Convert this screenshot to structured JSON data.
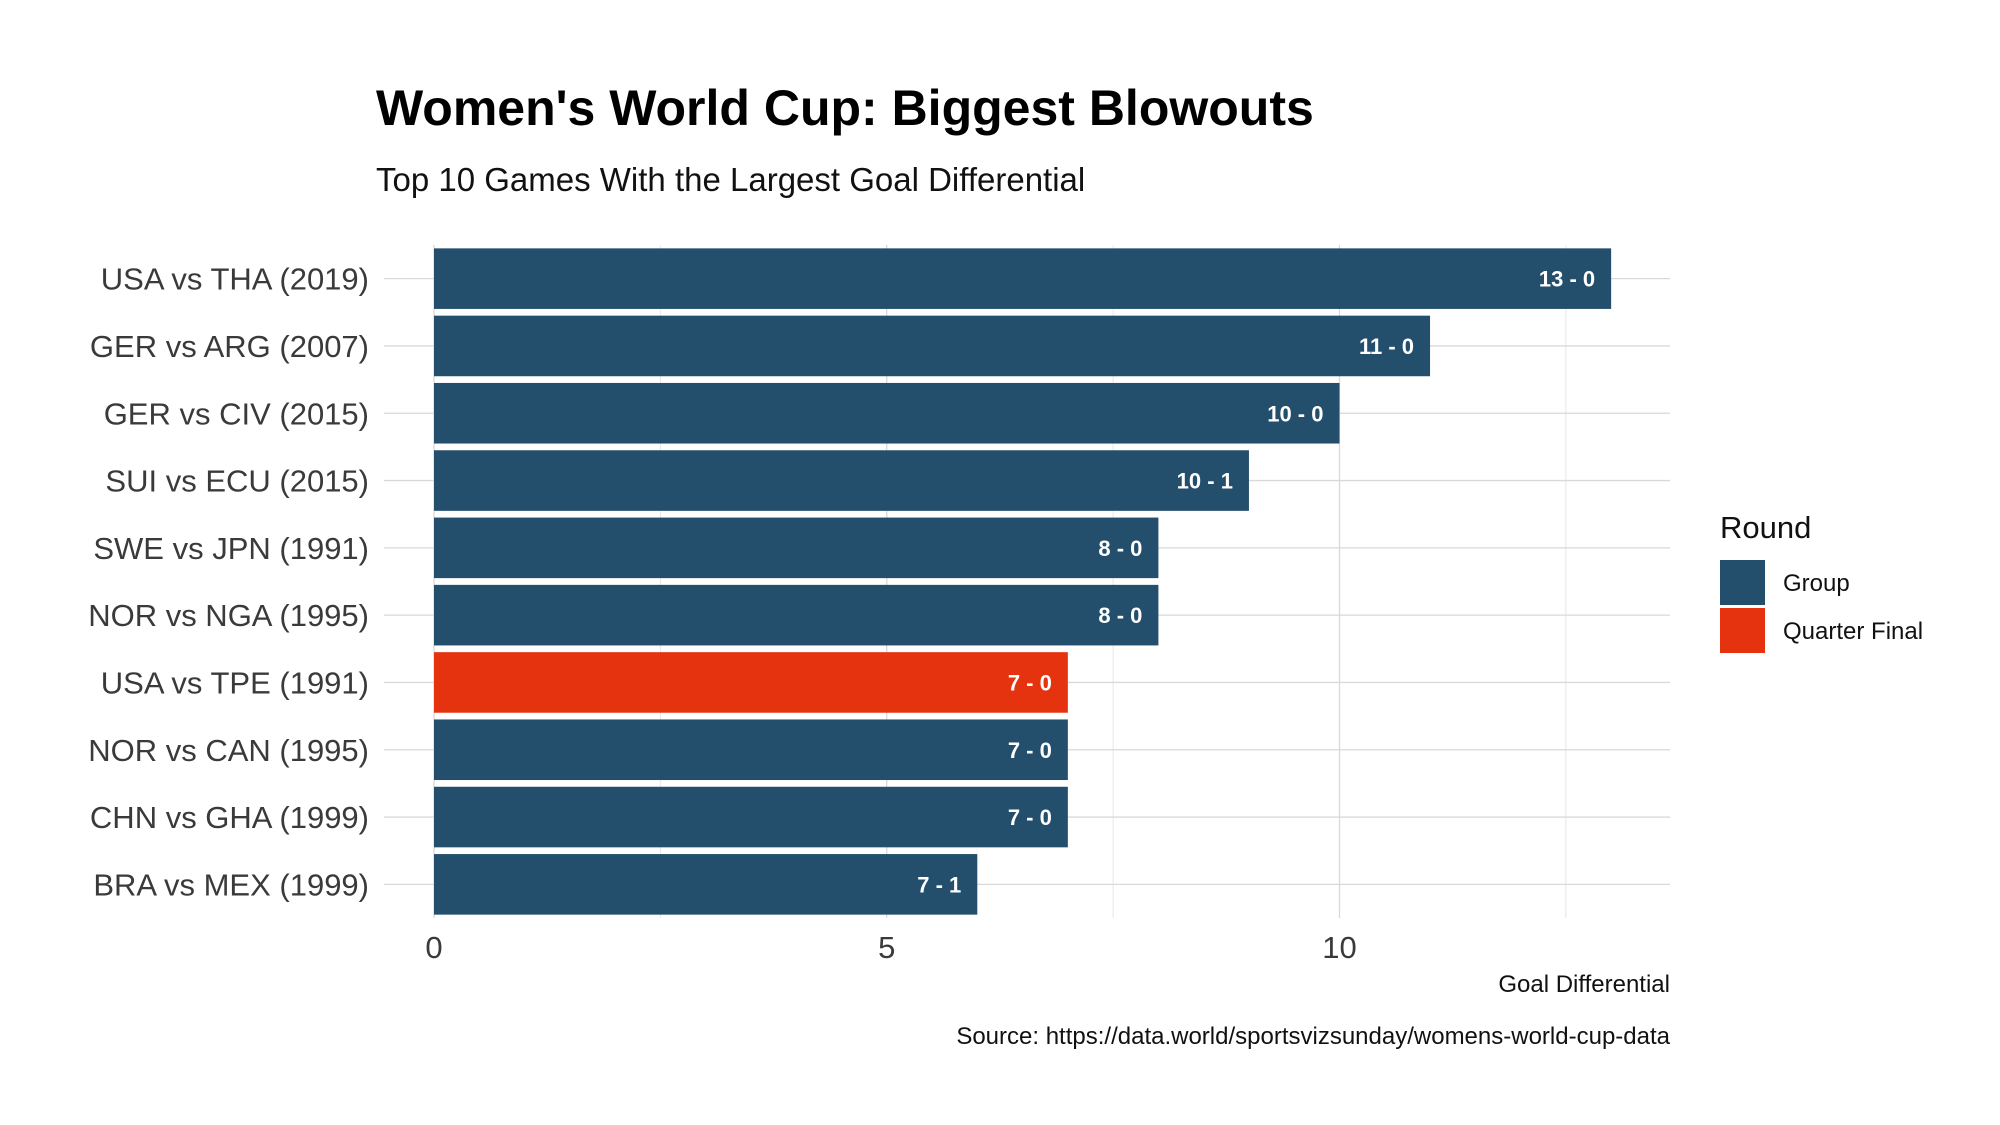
{
  "chart_data": {
    "type": "bar",
    "orientation": "horizontal",
    "title": "Women's World Cup: Biggest Blowouts",
    "subtitle": "Top 10 Games With the Largest Goal Differential",
    "xlabel": "Goal Differential",
    "caption": "Source: https://data.world/sportsvizsunday/womens-world-cup-data",
    "xlim": [
      0,
      13.65
    ],
    "x_ticks": [
      0,
      5,
      10
    ],
    "grid": true,
    "legend": {
      "title": "Round",
      "placement": "right",
      "entries": [
        {
          "name": "Group",
          "color": "#234e6c"
        },
        {
          "name": "Quarter Final",
          "color": "#e5330f"
        }
      ]
    },
    "categories": [
      "USA vs THA (2019)",
      "GER vs ARG (2007)",
      "GER vs CIV (2015)",
      "SUI vs ECU (2015)",
      "SWE vs JPN (1991)",
      "NOR vs NGA (1995)",
      "USA vs TPE (1991)",
      "NOR vs CAN (1995)",
      "CHN vs GHA (1999)",
      "BRA vs MEX (1999)"
    ],
    "values": [
      13,
      11,
      10,
      9,
      8,
      8,
      7,
      7,
      7,
      6
    ],
    "scores": [
      "13 - 0",
      "11 - 0",
      "10 - 0",
      "10 - 1",
      "8 - 0",
      "8 - 0",
      "7 - 0",
      "7 - 0",
      "7 - 0",
      "7 - 1"
    ],
    "rounds": [
      "Group",
      "Group",
      "Group",
      "Group",
      "Group",
      "Group",
      "Quarter Final",
      "Group",
      "Group",
      "Group"
    ]
  }
}
